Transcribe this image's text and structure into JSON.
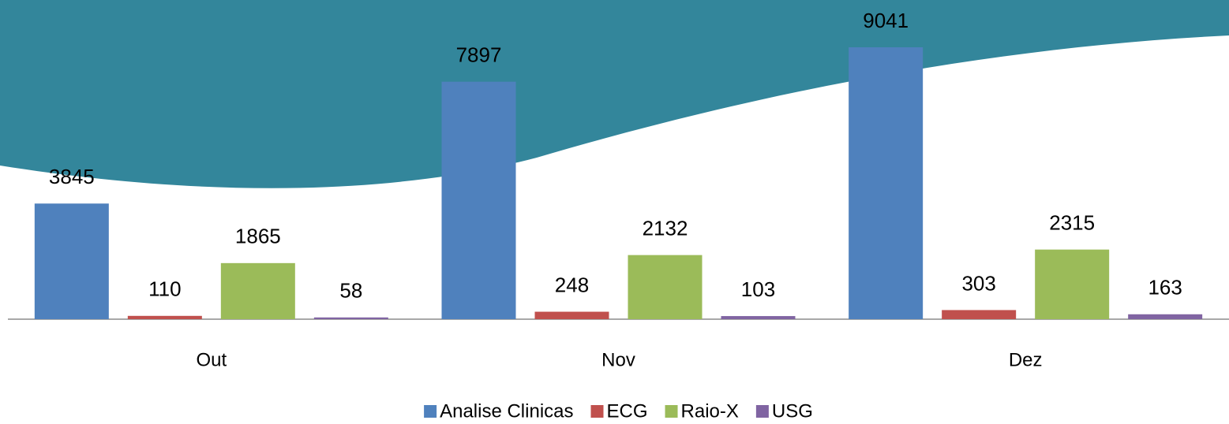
{
  "chart_data": {
    "type": "bar",
    "categories": [
      "Out",
      "Nov",
      "Dez"
    ],
    "series": [
      {
        "name": "Analise Clinicas",
        "color": "#4f81bd",
        "values": [
          3845,
          7897,
          9041
        ]
      },
      {
        "name": "ECG",
        "color": "#c0504d",
        "values": [
          110,
          248,
          303
        ]
      },
      {
        "name": "Raio-X",
        "color": "#9bbb59",
        "values": [
          1865,
          2132,
          2315
        ]
      },
      {
        "name": "USG",
        "color": "#8064a2",
        "values": [
          58,
          103,
          163
        ]
      }
    ],
    "legend": "bottom"
  }
}
